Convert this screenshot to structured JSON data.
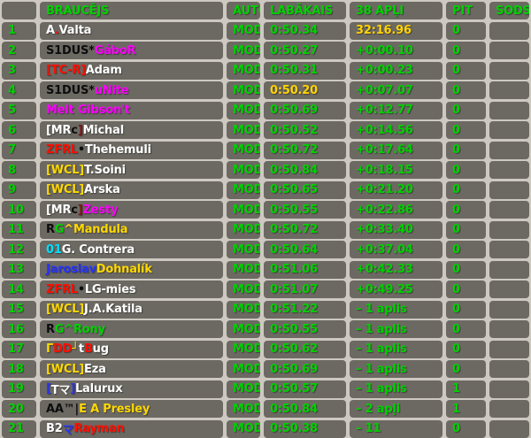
{
  "colors": {
    "green": "#00d000",
    "gold": "#ffd400",
    "white": "#ffffff",
    "black": "#0d0d0d",
    "red": "#ff0f00",
    "darkred": "#7d1212",
    "magenta": "#ff00ff",
    "cyan": "#00e0ff",
    "blue": "#2633ff",
    "yellow": "#ffd800",
    "cell_bg": "#6c6963",
    "page_bg": "#cdc9c1"
  },
  "table": {
    "headers": {
      "pos": "",
      "driver": "BRAUCĒJS",
      "auto": "AUTO",
      "best": "LABĀKAIS",
      "total": "38 APĻI",
      "pit": "PIT",
      "sods": "SODS"
    },
    "rows": [
      {
        "pos": "1",
        "name": [
          {
            "t": "A",
            "c": "white"
          },
          {
            "t": ".",
            "c": "red"
          },
          {
            "t": "Valta",
            "c": "white"
          }
        ],
        "auto": "MOD",
        "best": "0:50.34",
        "best_gold": false,
        "total": "32:16.96",
        "total_gold": true,
        "pit": "0",
        "sods": ""
      },
      {
        "pos": "2",
        "name": [
          {
            "t": "S1DUS*",
            "c": "black"
          },
          {
            "t": "GáboR",
            "c": "magenta"
          }
        ],
        "auto": "MOD",
        "best": "0:50.27",
        "best_gold": false,
        "total": "+0:00.10",
        "total_gold": false,
        "pit": "0",
        "sods": ""
      },
      {
        "pos": "3",
        "name": [
          {
            "t": "[TC-R]",
            "c": "red"
          },
          {
            "t": " Adam",
            "c": "white"
          }
        ],
        "auto": "MOD",
        "best": "0:50.31",
        "best_gold": false,
        "total": "+0:00.23",
        "total_gold": false,
        "pit": "0",
        "sods": ""
      },
      {
        "pos": "4",
        "name": [
          {
            "t": "S1DUS*",
            "c": "black"
          },
          {
            "t": "uNite",
            "c": "magenta"
          }
        ],
        "auto": "MOD",
        "best": "0:50.20",
        "best_gold": true,
        "total": "+0:07.07",
        "total_gold": false,
        "pit": "0",
        "sods": ""
      },
      {
        "pos": "5",
        "name": [
          {
            "t": "Melt Gibson't",
            "c": "magenta"
          }
        ],
        "auto": "MOD",
        "best": "0:50.69",
        "best_gold": false,
        "total": "+0:12.77",
        "total_gold": false,
        "pit": "0",
        "sods": ""
      },
      {
        "pos": "6",
        "name": [
          {
            "t": "[MR",
            "c": "white"
          },
          {
            "t": "c",
            "c": "black"
          },
          {
            "t": "]",
            "c": "darkred"
          },
          {
            "t": " Michal",
            "c": "white"
          }
        ],
        "auto": "MOD",
        "best": "0:50.52",
        "best_gold": false,
        "total": "+0:14.56",
        "total_gold": false,
        "pit": "0",
        "sods": ""
      },
      {
        "pos": "7",
        "name": [
          {
            "t": "ZFRL",
            "c": "red"
          },
          {
            "t": "•",
            "c": "black"
          },
          {
            "t": "Thehemuli",
            "c": "white"
          }
        ],
        "auto": "MOD",
        "best": "0:50.72",
        "best_gold": false,
        "total": "+0:17.64",
        "total_gold": false,
        "pit": "0",
        "sods": ""
      },
      {
        "pos": "8",
        "name": [
          {
            "t": "[WCL]",
            "c": "yellow"
          },
          {
            "t": " T.Soini",
            "c": "white"
          }
        ],
        "auto": "MOD",
        "best": "0:50.84",
        "best_gold": false,
        "total": "+0:18.15",
        "total_gold": false,
        "pit": "0",
        "sods": ""
      },
      {
        "pos": "9",
        "name": [
          {
            "t": "[WCL]",
            "c": "yellow"
          },
          {
            "t": " Arska",
            "c": "white"
          }
        ],
        "auto": "MOD",
        "best": "0:50.65",
        "best_gold": false,
        "total": "+0:21.20",
        "total_gold": false,
        "pit": "0",
        "sods": ""
      },
      {
        "pos": "10",
        "name": [
          {
            "t": "[MR",
            "c": "white"
          },
          {
            "t": "c",
            "c": "black"
          },
          {
            "t": "]",
            "c": "darkred"
          },
          {
            "t": " Zesty",
            "c": "magenta"
          }
        ],
        "auto": "MOD",
        "best": "0:50.55",
        "best_gold": false,
        "total": "+0:22.86",
        "total_gold": false,
        "pit": "0",
        "sods": ""
      },
      {
        "pos": "11",
        "name": [
          {
            "t": "R",
            "c": "black"
          },
          {
            "t": "G",
            "c": "green"
          },
          {
            "t": "^Mandula",
            "c": "yellow"
          }
        ],
        "auto": "MOD",
        "best": "0:50.72",
        "best_gold": false,
        "total": "+0:33.40",
        "total_gold": false,
        "pit": "0",
        "sods": ""
      },
      {
        "pos": "12",
        "name": [
          {
            "t": "01",
            "c": "cyan"
          },
          {
            "t": " G. Contrera",
            "c": "white"
          }
        ],
        "auto": "MOD",
        "best": "0:50.64",
        "best_gold": false,
        "total": "+0:37.04",
        "total_gold": false,
        "pit": "0",
        "sods": ""
      },
      {
        "pos": "13",
        "name": [
          {
            "t": "Jaroslav",
            "c": "blue"
          },
          {
            "t": " Dohnalík",
            "c": "yellow"
          }
        ],
        "auto": "MOD",
        "best": "0:51.06",
        "best_gold": false,
        "total": "+0:42.33",
        "total_gold": false,
        "pit": "0",
        "sods": ""
      },
      {
        "pos": "14",
        "name": [
          {
            "t": "ZFRL",
            "c": "red"
          },
          {
            "t": "•",
            "c": "black"
          },
          {
            "t": "LG-mies",
            "c": "white"
          }
        ],
        "auto": "MOD",
        "best": "0:51.07",
        "best_gold": false,
        "total": "+0:49.25",
        "total_gold": false,
        "pit": "0",
        "sods": ""
      },
      {
        "pos": "15",
        "name": [
          {
            "t": "[WCL]",
            "c": "yellow"
          },
          {
            "t": " J.A.Katila",
            "c": "white"
          }
        ],
        "auto": "MOD",
        "best": "0:51.22",
        "best_gold": false,
        "total": "– 1 aplis",
        "total_gold": false,
        "pit": "0",
        "sods": ""
      },
      {
        "pos": "16",
        "name": [
          {
            "t": "R",
            "c": "black"
          },
          {
            "t": "G",
            "c": "green"
          },
          {
            "t": "^Rony",
            "c": "green"
          }
        ],
        "auto": "MOD",
        "best": "0:50.55",
        "best_gold": false,
        "total": "– 1 aplis",
        "total_gold": false,
        "pit": "0",
        "sods": ""
      },
      {
        "pos": "17",
        "name": [
          {
            "t": "Γ",
            "c": "yellow"
          },
          {
            "t": "DD",
            "c": "red"
          },
          {
            "t": "┘",
            "c": "yellow"
          },
          {
            "t": " t",
            "c": "white"
          },
          {
            "t": "B",
            "c": "red"
          },
          {
            "t": "ug",
            "c": "white"
          }
        ],
        "auto": "MOD",
        "best": "0:50.62",
        "best_gold": false,
        "total": "– 1 aplis",
        "total_gold": false,
        "pit": "0",
        "sods": ""
      },
      {
        "pos": "18",
        "name": [
          {
            "t": "[WCL]",
            "c": "yellow"
          },
          {
            "t": " Eza",
            "c": "white"
          }
        ],
        "auto": "MOD",
        "best": "0:50.69",
        "best_gold": false,
        "total": "– 1 aplis",
        "total_gold": false,
        "pit": "0",
        "sods": ""
      },
      {
        "pos": "19",
        "name": [
          {
            "t": "[",
            "c": "blue"
          },
          {
            "t": "Tマ",
            "c": "white"
          },
          {
            "t": "]",
            "c": "blue"
          },
          {
            "t": " Lalurux",
            "c": "white"
          }
        ],
        "auto": "MOD",
        "best": "0:50.57",
        "best_gold": false,
        "total": "– 1 aplis",
        "total_gold": false,
        "pit": "1",
        "sods": ""
      },
      {
        "pos": "20",
        "name": [
          {
            "t": "AA™|",
            "c": "black"
          },
          {
            "t": " E A Presley",
            "c": "yellow"
          }
        ],
        "auto": "MOD",
        "best": "0:50.84",
        "best_gold": false,
        "total": "– 2 apļi",
        "total_gold": false,
        "pit": "1",
        "sods": ""
      },
      {
        "pos": "21",
        "name": [
          {
            "t": "B2",
            "c": "white"
          },
          {
            "t": "マ",
            "c": "blue"
          },
          {
            "t": " Rayman",
            "c": "red"
          }
        ],
        "auto": "MOD",
        "best": "0:50.38",
        "best_gold": false,
        "total": "– 11",
        "total_gold": false,
        "pit": "0",
        "sods": ""
      }
    ]
  }
}
